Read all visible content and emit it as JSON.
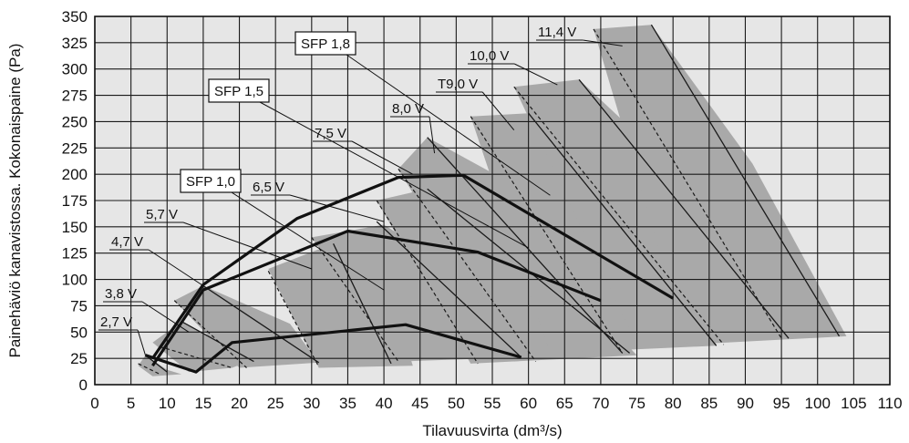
{
  "chart_data": {
    "type": "line",
    "xlabel": "Tilavuusvirta (dm³/s)",
    "ylabel": "Painehäviö kanavistossa. Kokonaispaine (Pa)",
    "xlim": [
      0,
      110
    ],
    "ylim": [
      0,
      350
    ],
    "grid": true,
    "x_ticks": [
      "0",
      "5",
      "10",
      "15",
      "20",
      "25",
      "30",
      "35",
      "40",
      "45",
      "50",
      "55",
      "60",
      "65",
      "70",
      "75",
      "80",
      "85",
      "90",
      "95",
      "100",
      "105",
      "110"
    ],
    "y_ticks": [
      "0",
      "25",
      "50",
      "75",
      "100",
      "125",
      "150",
      "175",
      "200",
      "225",
      "250",
      "275",
      "300",
      "325",
      "350"
    ],
    "colors": {
      "plot_bg": "#e6e6e6",
      "band": "#a9a9a9",
      "grid": "#1a1a1a",
      "thick_line": "#111111"
    },
    "voltage_bands": [
      {
        "label": "2,7 V",
        "polygon": [
          [
            6,
            18
          ],
          [
            7,
            28
          ],
          [
            10,
            14
          ],
          [
            12,
            10
          ],
          [
            8,
            8
          ]
        ],
        "leader_to": [
          7,
          28
        ],
        "solid": [
          [
            7,
            28
          ],
          [
            10,
            12
          ]
        ],
        "dashed": [
          [
            6,
            20
          ],
          [
            9,
            10
          ]
        ]
      },
      {
        "label": "3,8 V",
        "polygon": [
          [
            8,
            40
          ],
          [
            12,
            60
          ],
          [
            22,
            24
          ],
          [
            19,
            16
          ],
          [
            13,
            12
          ]
        ],
        "leader_to": [
          13,
          50
        ],
        "solid": [
          [
            12,
            60
          ],
          [
            22,
            22
          ]
        ],
        "dashed": [
          [
            9,
            36
          ],
          [
            19,
            16
          ]
        ]
      },
      {
        "label": "4,7 V",
        "polygon": [
          [
            11,
            80
          ],
          [
            15,
            94
          ],
          [
            27,
            58
          ],
          [
            31,
            21
          ],
          [
            20,
            16
          ]
        ],
        "leader_to": [
          15,
          94
        ],
        "solid": [
          [
            15,
            94
          ],
          [
            31,
            21
          ]
        ],
        "dashed": [
          [
            11,
            80
          ],
          [
            21,
            16
          ]
        ]
      },
      {
        "label": "5,7 V",
        "polygon": [
          [
            24,
            110
          ],
          [
            33,
            134
          ],
          [
            40,
            105
          ],
          [
            44,
            18
          ],
          [
            31,
            16
          ]
        ],
        "leader_to": [
          30,
          110
        ],
        "solid": [
          [
            33,
            134
          ],
          [
            41,
            20
          ]
        ],
        "dashed": [
          [
            24,
            108
          ],
          [
            31,
            17
          ]
        ]
      },
      {
        "label": "6,5 V",
        "polygon": [
          [
            30,
            140
          ],
          [
            40,
            152
          ],
          [
            53,
            95
          ],
          [
            59,
            26
          ],
          [
            42,
            22
          ]
        ],
        "leader_to": [
          40,
          155
        ],
        "solid": [
          [
            39,
            155
          ],
          [
            59,
            26
          ]
        ],
        "dashed": [
          [
            30,
            140
          ],
          [
            42,
            22
          ]
        ]
      },
      {
        "label": "7,5 V",
        "polygon": [
          [
            39,
            175
          ],
          [
            46,
            186
          ],
          [
            65,
            100
          ],
          [
            75,
            28
          ],
          [
            52,
            20
          ]
        ],
        "leader_to": [
          44,
          200
        ],
        "solid": [
          [
            46,
            186
          ],
          [
            74,
            30
          ]
        ],
        "dashed": [
          [
            39,
            175
          ],
          [
            53,
            20
          ]
        ]
      },
      {
        "label": "8,0 V",
        "polygon": [
          [
            42,
            205
          ],
          [
            46,
            235
          ],
          [
            58,
            190
          ],
          [
            73,
            32
          ],
          [
            58,
            22
          ]
        ],
        "leader_to": [
          47,
          220
        ],
        "solid": [
          [
            46,
            235
          ],
          [
            73,
            30
          ]
        ],
        "dashed": [
          [
            42,
            205
          ],
          [
            61,
            22
          ]
        ]
      },
      {
        "label": "T9,0 V",
        "polygon": [
          [
            52,
            255
          ],
          [
            60,
            258
          ],
          [
            80,
            185
          ],
          [
            86,
            37
          ],
          [
            63,
            30
          ]
        ],
        "leader_to": [
          58,
          242
        ],
        "solid": [
          [
            60,
            258
          ],
          [
            86,
            37
          ]
        ],
        "dashed": [
          [
            52,
            255
          ],
          [
            73,
            30
          ]
        ]
      },
      {
        "label": "10,0 V",
        "polygon": [
          [
            58,
            283
          ],
          [
            67,
            290
          ],
          [
            81,
            200
          ],
          [
            96,
            44
          ],
          [
            75,
            38
          ]
        ],
        "leader_to": [
          64,
          285
        ],
        "solid": [
          [
            67,
            290
          ],
          [
            96,
            44
          ]
        ],
        "dashed": [
          [
            58,
            283
          ],
          [
            87,
            38
          ]
        ]
      },
      {
        "label": "11,4 V",
        "polygon": [
          [
            69,
            338
          ],
          [
            77,
            342
          ],
          [
            91,
            210
          ],
          [
            104,
            46
          ],
          [
            82,
            38
          ]
        ],
        "leader_to": [
          73,
          322
        ],
        "solid": [
          [
            77,
            342
          ],
          [
            103,
            46
          ]
        ],
        "dashed": [
          [
            69,
            338
          ],
          [
            95,
            44
          ]
        ]
      }
    ],
    "sfp_curves": [
      {
        "label": "SFP 1,0",
        "points": [
          [
            7,
            28
          ],
          [
            14,
            12
          ],
          [
            19,
            40
          ],
          [
            43,
            57
          ],
          [
            59,
            26
          ]
        ],
        "leader_to": [
          40,
          90
        ]
      },
      {
        "label": "SFP 1,5",
        "points": [
          [
            8,
            18
          ],
          [
            15,
            90
          ],
          [
            35,
            146
          ],
          [
            53,
            126
          ],
          [
            70,
            80
          ]
        ],
        "leader_to": [
          60,
          130
        ]
      },
      {
        "label": "SFP 1,8",
        "points": [
          [
            8,
            25
          ],
          [
            15,
            95
          ],
          [
            28,
            158
          ],
          [
            42,
            197
          ],
          [
            51,
            199
          ],
          [
            80,
            82
          ]
        ],
        "leader_to": [
          63,
          180
        ]
      }
    ]
  }
}
